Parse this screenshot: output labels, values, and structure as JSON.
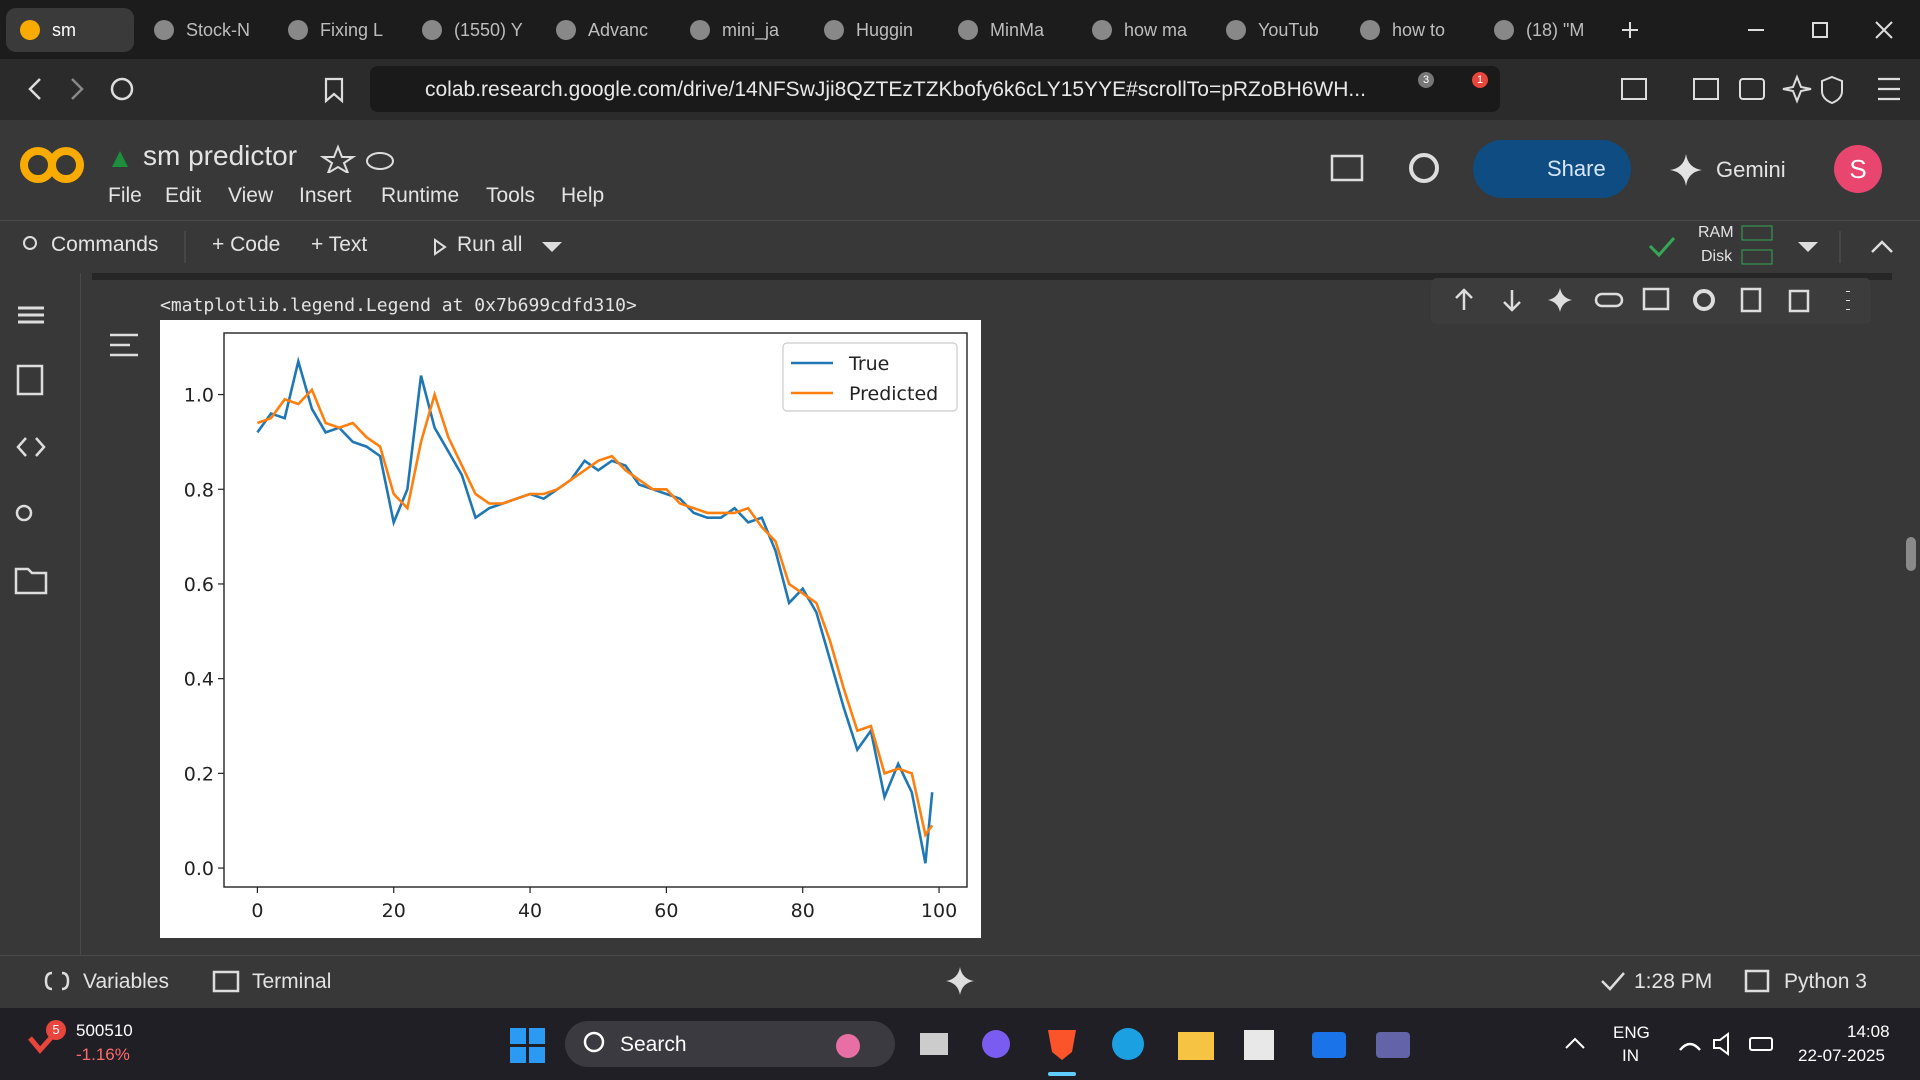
{
  "browser": {
    "tabs": [
      "sm",
      "Stock-N",
      "Fixing L",
      "(1550) Y",
      "Advanc",
      "mini_ja",
      "Huggin",
      "MinMa",
      "how ma",
      "YouTub",
      "how to",
      "(18) \"M"
    ],
    "url": "colab.research.google.com/drive/14NFSwJji8QZTEzTZKbofy6k6cLY15YYE#scrollTo=pRZoBH6WH...",
    "shield_badge": "3",
    "alert_badge": "1"
  },
  "colab": {
    "notebook_title": "sm predictor",
    "menu": [
      "File",
      "Edit",
      "View",
      "Insert",
      "Runtime",
      "Tools",
      "Help"
    ],
    "share": "Share",
    "gemini": "Gemini",
    "avatar": "S",
    "toolbar": {
      "commands": "Commands",
      "code": "+ Code",
      "text": "+ Text",
      "run_all": "Run all",
      "ram": "RAM",
      "disk": "Disk"
    },
    "output_text": "<matplotlib.legend.Legend at 0x7b699cdfd310>",
    "status": {
      "variables": "Variables",
      "terminal": "Terminal",
      "time": "1:28 PM",
      "runtime": "Python 3"
    }
  },
  "taskbar": {
    "stock_badge": "5",
    "stock_name": "500510",
    "stock_change": "-1.16%",
    "search": "Search",
    "lang": "ENG",
    "region": "IN",
    "clock": "14:08",
    "date": "22-07-2025"
  },
  "chart_data": {
    "type": "line",
    "x": [
      0,
      2,
      4,
      6,
      8,
      10,
      12,
      14,
      16,
      18,
      20,
      22,
      24,
      26,
      28,
      30,
      32,
      34,
      36,
      38,
      40,
      42,
      44,
      46,
      48,
      50,
      52,
      54,
      56,
      58,
      60,
      62,
      64,
      66,
      68,
      70,
      72,
      74,
      76,
      78,
      80,
      82,
      84,
      86,
      88,
      90,
      92,
      94,
      96,
      98,
      99
    ],
    "series": [
      {
        "name": "True",
        "color": "#1f77b4",
        "values": [
          0.92,
          0.96,
          0.95,
          1.07,
          0.97,
          0.92,
          0.93,
          0.9,
          0.89,
          0.87,
          0.73,
          0.8,
          1.04,
          0.93,
          0.88,
          0.83,
          0.74,
          0.76,
          0.77,
          0.78,
          0.79,
          0.78,
          0.8,
          0.82,
          0.86,
          0.84,
          0.86,
          0.85,
          0.81,
          0.8,
          0.79,
          0.78,
          0.75,
          0.74,
          0.74,
          0.76,
          0.73,
          0.74,
          0.67,
          0.56,
          0.59,
          0.54,
          0.44,
          0.34,
          0.25,
          0.29,
          0.15,
          0.22,
          0.16,
          0.01,
          0.16
        ]
      },
      {
        "name": "Predicted",
        "color": "#ff7f0e",
        "values": [
          0.94,
          0.95,
          0.99,
          0.98,
          1.01,
          0.94,
          0.93,
          0.94,
          0.91,
          0.89,
          0.79,
          0.76,
          0.9,
          1.0,
          0.91,
          0.85,
          0.79,
          0.77,
          0.77,
          0.78,
          0.79,
          0.79,
          0.8,
          0.82,
          0.84,
          0.86,
          0.87,
          0.84,
          0.82,
          0.8,
          0.8,
          0.77,
          0.76,
          0.75,
          0.75,
          0.75,
          0.76,
          0.72,
          0.69,
          0.6,
          0.58,
          0.56,
          0.48,
          0.38,
          0.29,
          0.3,
          0.2,
          0.21,
          0.2,
          0.07,
          0.09
        ]
      }
    ],
    "xlim": [
      -4.9,
      104.1
    ],
    "ylim": [
      -0.04,
      1.13
    ],
    "xticks": [
      0,
      20,
      40,
      60,
      80,
      100
    ],
    "yticks": [
      {
        "value": 0,
        "label": "0.0"
      },
      0.2,
      0.4,
      0.6,
      0.8,
      {
        "value": 1,
        "label": "1.0"
      }
    ],
    "legend": "upper right"
  }
}
